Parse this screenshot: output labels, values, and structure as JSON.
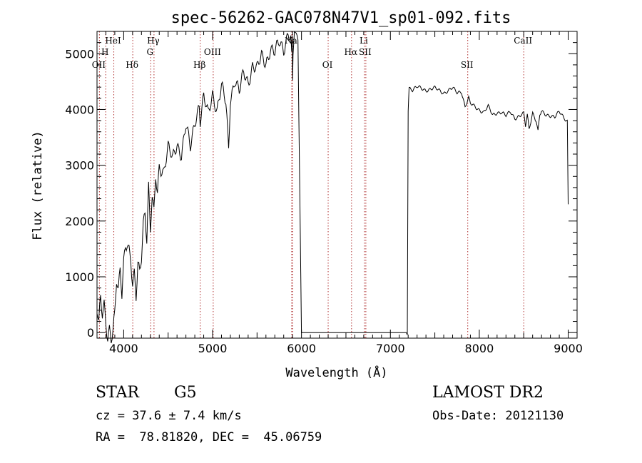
{
  "chart_data": {
    "type": "line",
    "title": "spec-56262-GAC078N47V1_sp01-092.fits",
    "xlabel": "Wavelength (Å)",
    "ylabel": "Flux (relative)",
    "xlim": [
      3700,
      9100
    ],
    "ylim": [
      -100,
      5400
    ],
    "xticks": [
      4000,
      5000,
      6000,
      7000,
      8000,
      9000
    ],
    "yticks": [
      0,
      1000,
      2000,
      3000,
      4000,
      5000
    ],
    "series": [
      {
        "x": [
          3700,
          3720,
          3740,
          3760,
          3780,
          3800,
          3820,
          3840,
          3860,
          3880,
          3900,
          3920,
          3940,
          3960,
          3970,
          3980,
          4000,
          4020,
          4040,
          4060,
          4080,
          4100,
          4120,
          4140,
          4160,
          4180,
          4200,
          4220,
          4240,
          4260,
          4280,
          4300,
          4320,
          4340,
          4360,
          4380,
          4400,
          4450,
          4500,
          4550,
          4600,
          4650,
          4700,
          4750,
          4800,
          4850,
          4860,
          4900,
          4950,
          5000,
          5050,
          5100,
          5150,
          5180,
          5200,
          5250,
          5300,
          5350,
          5400,
          5450,
          5500,
          5550,
          5600,
          5650,
          5700,
          5750,
          5800,
          5850,
          5880,
          5890,
          5895,
          5900,
          5905,
          5920,
          5950,
          5960,
          6000,
          6500,
          7000,
          7190,
          7200,
          7210,
          7250,
          7300,
          7400,
          7500,
          7600,
          7700,
          7750,
          7800,
          7840,
          7880,
          7900,
          7950,
          8000,
          8050,
          8100,
          8150,
          8200,
          8250,
          8300,
          8350,
          8400,
          8450,
          8500,
          8520,
          8540,
          8560,
          8600,
          8640,
          8660,
          8680,
          8700,
          8750,
          8800,
          8850,
          8900,
          8950,
          8990,
          9000
        ],
        "y": [
          400,
          100,
          600,
          300,
          500,
          200,
          -50,
          100,
          -80,
          50,
          300,
          900,
          700,
          1100,
          900,
          700,
          1300,
          1600,
          1650,
          1500,
          1300,
          800,
          1000,
          600,
          1200,
          1100,
          1400,
          2000,
          2200,
          1700,
          2600,
          1800,
          2400,
          2100,
          2800,
          2500,
          3000,
          2900,
          3300,
          3100,
          3400,
          3200,
          3700,
          3300,
          3800,
          4100,
          3800,
          4200,
          3900,
          4300,
          4000,
          4400,
          4100,
          3300,
          4200,
          4550,
          4300,
          4650,
          4500,
          4800,
          4700,
          4950,
          4850,
          5100,
          5000,
          5200,
          5100,
          5400,
          5250,
          4900,
          5300,
          4500,
          5000,
          5400,
          5300,
          5250,
          0,
          0,
          0,
          0,
          4000,
          4400,
          4350,
          4400,
          4350,
          4380,
          4300,
          4380,
          4300,
          4330,
          4050,
          4200,
          4100,
          4050,
          4000,
          3950,
          4050,
          3900,
          3950,
          3950,
          3880,
          3960,
          3850,
          3880,
          3920,
          3700,
          3900,
          3650,
          3950,
          3800,
          3600,
          3900,
          3950,
          3900,
          3900,
          3870,
          3950,
          3850,
          3800,
          2300
        ]
      }
    ],
    "lines": [
      {
        "x": 3727,
        "label": "OII",
        "row": 3
      },
      {
        "x": 3798,
        "label": "H",
        "row": 2
      },
      {
        "x": 3889,
        "label": "HeI",
        "row": 1
      },
      {
        "x": 4102,
        "label": "Hδ",
        "row": 3
      },
      {
        "x": 4304,
        "label": "G",
        "row": 2
      },
      {
        "x": 4341,
        "label": "Hγ",
        "row": 1
      },
      {
        "x": 4861,
        "label": "Hβ",
        "row": 3
      },
      {
        "x": 5007,
        "label": "OIII",
        "row": 2
      },
      {
        "x": 5890,
        "label": "Na",
        "row": 1
      },
      {
        "x": 5900,
        "label": "",
        "row": 1
      },
      {
        "x": 6300,
        "label": "OI",
        "row": 3
      },
      {
        "x": 6563,
        "label": "Hα",
        "row": 2
      },
      {
        "x": 6708,
        "label": "Li",
        "row": 1
      },
      {
        "x": 6724,
        "label": "SII",
        "row": 2
      },
      {
        "x": 7870,
        "label": "SII",
        "row": 3
      },
      {
        "x": 8500,
        "label": "CaII",
        "row": 1
      }
    ]
  },
  "info": {
    "object_class": "STAR",
    "subclass": "G5",
    "survey": "LAMOST DR2",
    "cz": "cz = 37.6 ± 7.4 km/s",
    "obs_date": "Obs-Date: 20121130",
    "radec": "RA =  78.81820, DEC =  45.06759"
  }
}
